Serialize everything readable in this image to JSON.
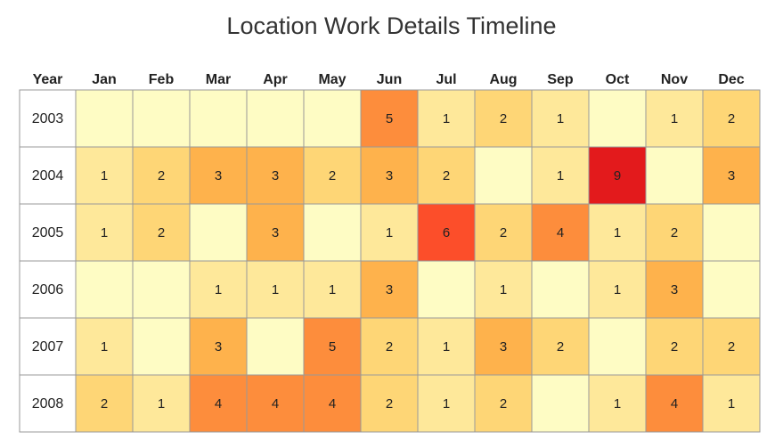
{
  "chart_data": {
    "type": "heatmap",
    "title": "Location Work Details Timeline",
    "row_header": "Year",
    "columns": [
      "Jan",
      "Feb",
      "Mar",
      "Apr",
      "May",
      "Jun",
      "Jul",
      "Aug",
      "Sep",
      "Oct",
      "Nov",
      "Dec"
    ],
    "rows": [
      "2003",
      "2004",
      "2005",
      "2006",
      "2007",
      "2008"
    ],
    "values": [
      [
        0,
        0,
        0,
        0,
        0,
        5,
        1,
        2,
        1,
        0,
        1,
        2
      ],
      [
        1,
        2,
        3,
        3,
        2,
        3,
        2,
        0,
        1,
        9,
        0,
        3
      ],
      [
        1,
        2,
        0,
        3,
        0,
        1,
        6,
        2,
        4,
        1,
        2,
        0
      ],
      [
        0,
        0,
        1,
        1,
        1,
        3,
        0,
        1,
        0,
        1,
        3,
        0
      ],
      [
        1,
        0,
        3,
        0,
        5,
        2,
        1,
        3,
        2,
        0,
        2,
        2
      ],
      [
        2,
        1,
        4,
        4,
        4,
        2,
        1,
        2,
        0,
        1,
        4,
        1
      ]
    ],
    "empty_cells_show_value": false,
    "color_scale": {
      "0": "#fefcc4",
      "1": "#fee89a",
      "2": "#fed676",
      "3": "#feb24c",
      "4": "#fd8d3c",
      "5": "#fd8d3c",
      "6": "#fc4e2a",
      "9": "#e31a1c"
    },
    "grid_line_color": "#999999"
  }
}
